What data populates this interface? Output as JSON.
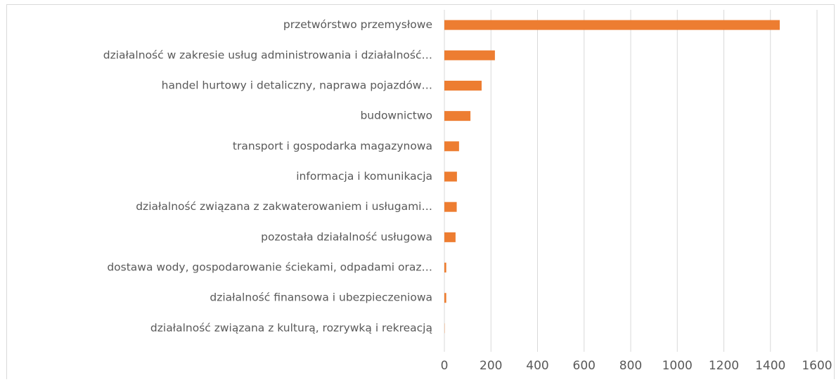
{
  "chart_data": {
    "type": "bar",
    "orientation": "horizontal",
    "categories": [
      "przetwórstwo przemysłowe",
      "działalność w zakresie usług administrowania i działalność…",
      "handel hurtowy i detaliczny, naprawa pojazdów…",
      "budownictwo",
      "transport i gospodarka magazynowa",
      "informacja i komunikacja",
      "działalność związana z zakwaterowaniem i usługami…",
      "pozostała działalność usługowa",
      "dostawa wody, gospodarowanie ściekami, odpadami oraz…",
      "działalność finansowa i ubezpieczeniowa",
      "działalność związana z kulturą, rozrywką i rekreacją"
    ],
    "values": [
      1440,
      217,
      160,
      112,
      63,
      54,
      53,
      48,
      8,
      8,
      1
    ],
    "color": "#ed7d31",
    "xlim": [
      0,
      1600
    ],
    "xticks": [
      0,
      200,
      400,
      600,
      800,
      1000,
      1200,
      1400,
      1600
    ],
    "grid": true
  }
}
